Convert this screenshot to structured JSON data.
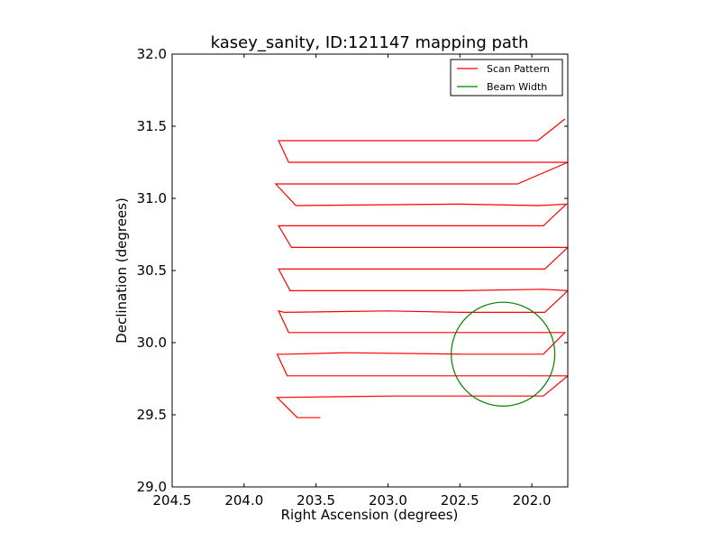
{
  "chart_data": {
    "type": "line",
    "title": "kasey_sanity, ID:121147 mapping path",
    "xlabel": "Right Ascension (degrees)",
    "ylabel": "Declination (degrees)",
    "xlim": [
      204.5,
      201.75
    ],
    "ylim": [
      29.0,
      32.0
    ],
    "x_inverted": true,
    "xticks": [
      "204.5",
      "204.0",
      "203.5",
      "203.0",
      "202.5",
      "202.0"
    ],
    "yticks": [
      "29.0",
      "29.5",
      "30.0",
      "30.5",
      "31.0",
      "31.5",
      "32.0"
    ],
    "grid": false,
    "legend_position": "top-right",
    "series": [
      {
        "name": "Scan Pattern",
        "color": "#ff0000",
        "x": [
          203.47,
          203.63,
          203.77,
          202.95,
          202.25,
          201.92,
          201.75,
          201.94,
          202.5,
          203.7,
          203.77,
          203.7,
          203.3,
          202.5,
          201.92,
          201.77,
          201.91,
          202.5,
          203.69,
          203.76,
          203.72,
          203.0,
          202.5,
          201.91,
          201.75,
          201.92,
          202.5,
          203.68,
          203.76,
          203.67,
          203.3,
          202.5,
          201.91,
          201.75,
          201.92,
          202.5,
          203.67,
          203.76,
          203.68,
          203.3,
          202.5,
          201.92,
          201.76,
          201.95,
          202.5,
          203.64,
          203.78,
          203.7,
          203.2,
          202.5,
          202.1,
          201.75,
          201.91,
          202.5,
          203.69,
          203.76,
          203.6,
          203.0,
          202.5,
          201.96,
          201.77
        ],
        "y": [
          29.48,
          29.48,
          29.62,
          29.63,
          29.63,
          29.63,
          29.77,
          29.77,
          29.77,
          29.77,
          29.92,
          29.92,
          29.93,
          29.92,
          29.92,
          30.07,
          30.07,
          30.07,
          30.07,
          30.22,
          30.21,
          30.22,
          30.21,
          30.21,
          30.36,
          30.37,
          30.36,
          30.36,
          30.51,
          30.51,
          30.51,
          30.51,
          30.51,
          30.66,
          30.66,
          30.66,
          30.66,
          30.81,
          30.81,
          30.81,
          30.81,
          30.81,
          30.96,
          30.95,
          30.96,
          30.95,
          31.1,
          31.1,
          31.1,
          31.1,
          31.1,
          31.25,
          31.25,
          31.25,
          31.25,
          31.4,
          31.4,
          31.4,
          31.4,
          31.4,
          31.55
        ]
      },
      {
        "name": "Beam Width",
        "color": "#008000",
        "shape": "circle",
        "center": [
          202.2,
          29.92
        ],
        "radius_deg": 0.36
      }
    ]
  }
}
